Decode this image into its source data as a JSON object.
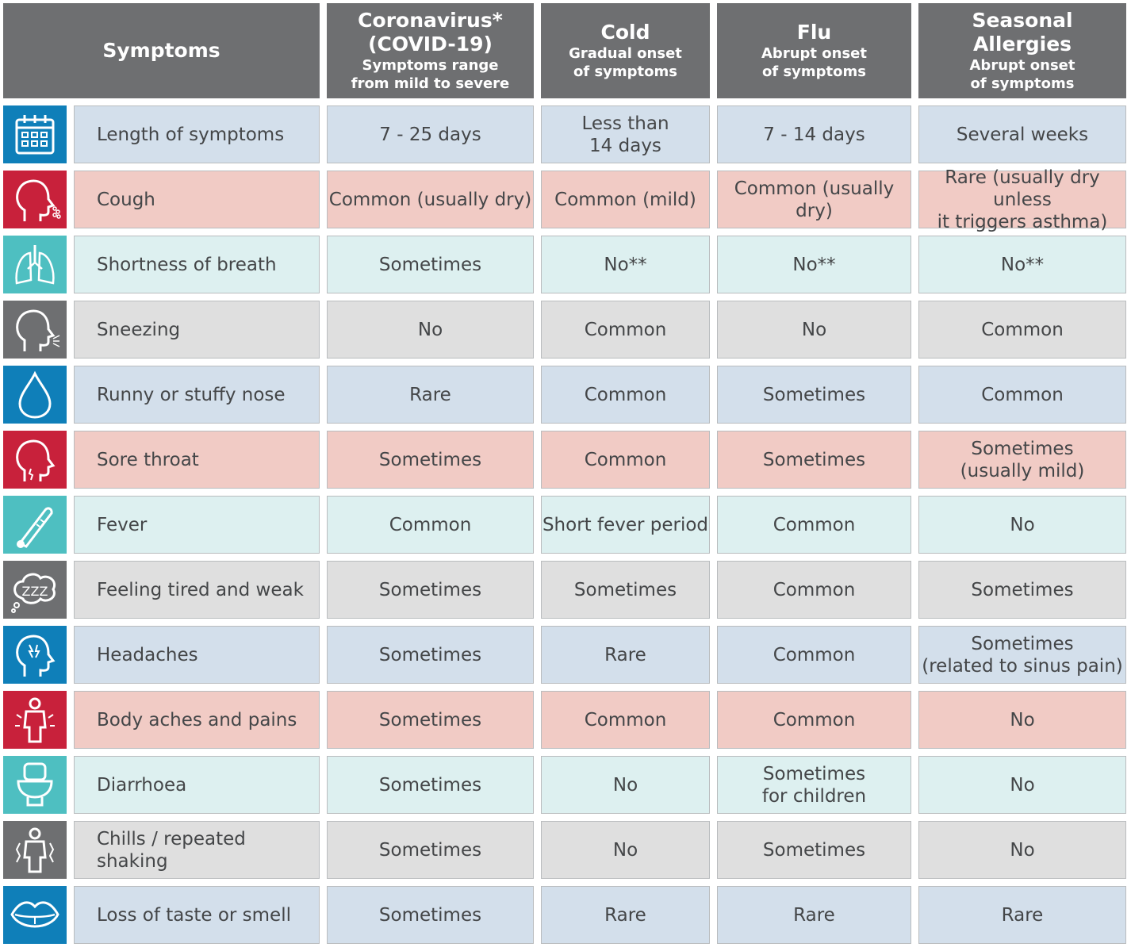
{
  "header": {
    "symptoms": "Symptoms",
    "columns": [
      {
        "title": "Coronavirus*",
        "title2": "(COVID-19)",
        "sub1": "Symptoms range",
        "sub2": "from mild to severe"
      },
      {
        "title": "Cold",
        "title2": "",
        "sub1": "Gradual onset",
        "sub2": "of symptoms"
      },
      {
        "title": "Flu",
        "title2": "",
        "sub1": "Abrupt onset",
        "sub2": "of symptoms"
      },
      {
        "title": "Seasonal",
        "title2": "Allergies",
        "sub1": "Abrupt onset",
        "sub2": "of symptoms"
      }
    ]
  },
  "colors": {
    "header_bg": "#6e6f71",
    "blue_cell": "#d3dfeb",
    "blue_icon": "#0f7fb9",
    "red_cell": "#f1cbc5",
    "red_icon": "#c8213b",
    "teal_cell": "#ddf0f0",
    "teal_icon": "#4ebfc1",
    "gray_cell": "#dfdfdf",
    "gray_icon": "#6e6f71"
  },
  "rows": [
    {
      "icon": "calendar-icon",
      "label": "Length of symptoms",
      "covid": "7 - 25 days",
      "cold": "Less than\n14 days",
      "flu": "7 - 14 days",
      "allergies": "Several weeks"
    },
    {
      "icon": "cough-icon",
      "label": "Cough",
      "covid": "Common (usually dry)",
      "cold": "Common (mild)",
      "flu": "Common (usually\ndry)",
      "allergies": "Rare (usually dry unless\nit triggers asthma)"
    },
    {
      "icon": "lungs-icon",
      "label": "Shortness of breath",
      "covid": "Sometimes",
      "cold": "No**",
      "flu": "No**",
      "allergies": "No**"
    },
    {
      "icon": "sneeze-icon",
      "label": "Sneezing",
      "covid": "No",
      "cold": "Common",
      "flu": "No",
      "allergies": "Common"
    },
    {
      "icon": "droplet-icon",
      "label": "Runny or stuffy nose",
      "covid": "Rare",
      "cold": "Common",
      "flu": "Sometimes",
      "allergies": "Common"
    },
    {
      "icon": "throat-icon",
      "label": "Sore throat",
      "covid": "Sometimes",
      "cold": "Common",
      "flu": "Sometimes",
      "allergies": "Sometimes\n(usually mild)"
    },
    {
      "icon": "thermometer-icon",
      "label": "Fever",
      "covid": "Common",
      "cold": "Short fever period",
      "flu": "Common",
      "allergies": "No"
    },
    {
      "icon": "zzz-icon",
      "label": "Feeling tired and weak",
      "covid": "Sometimes",
      "cold": "Sometimes",
      "flu": "Common",
      "allergies": "Sometimes"
    },
    {
      "icon": "headache-icon",
      "label": "Headaches",
      "covid": "Sometimes",
      "cold": "Rare",
      "flu": "Common",
      "allergies": "Sometimes\n(related to sinus pain)"
    },
    {
      "icon": "body-aches-icon",
      "label": "Body aches and pains",
      "covid": "Sometimes",
      "cold": "Common",
      "flu": "Common",
      "allergies": "No"
    },
    {
      "icon": "toilet-icon",
      "label": "Diarrhoea",
      "covid": "Sometimes",
      "cold": "No",
      "flu": "Sometimes\nfor children",
      "allergies": "No"
    },
    {
      "icon": "chills-icon",
      "label": "Chills / repeated shaking",
      "covid": "Sometimes",
      "cold": "No",
      "flu": "Sometimes",
      "allergies": "No"
    },
    {
      "icon": "lips-icon",
      "label": "Loss of taste or smell",
      "covid": "Sometimes",
      "cold": "Rare",
      "flu": "Rare",
      "allergies": "Rare"
    }
  ]
}
